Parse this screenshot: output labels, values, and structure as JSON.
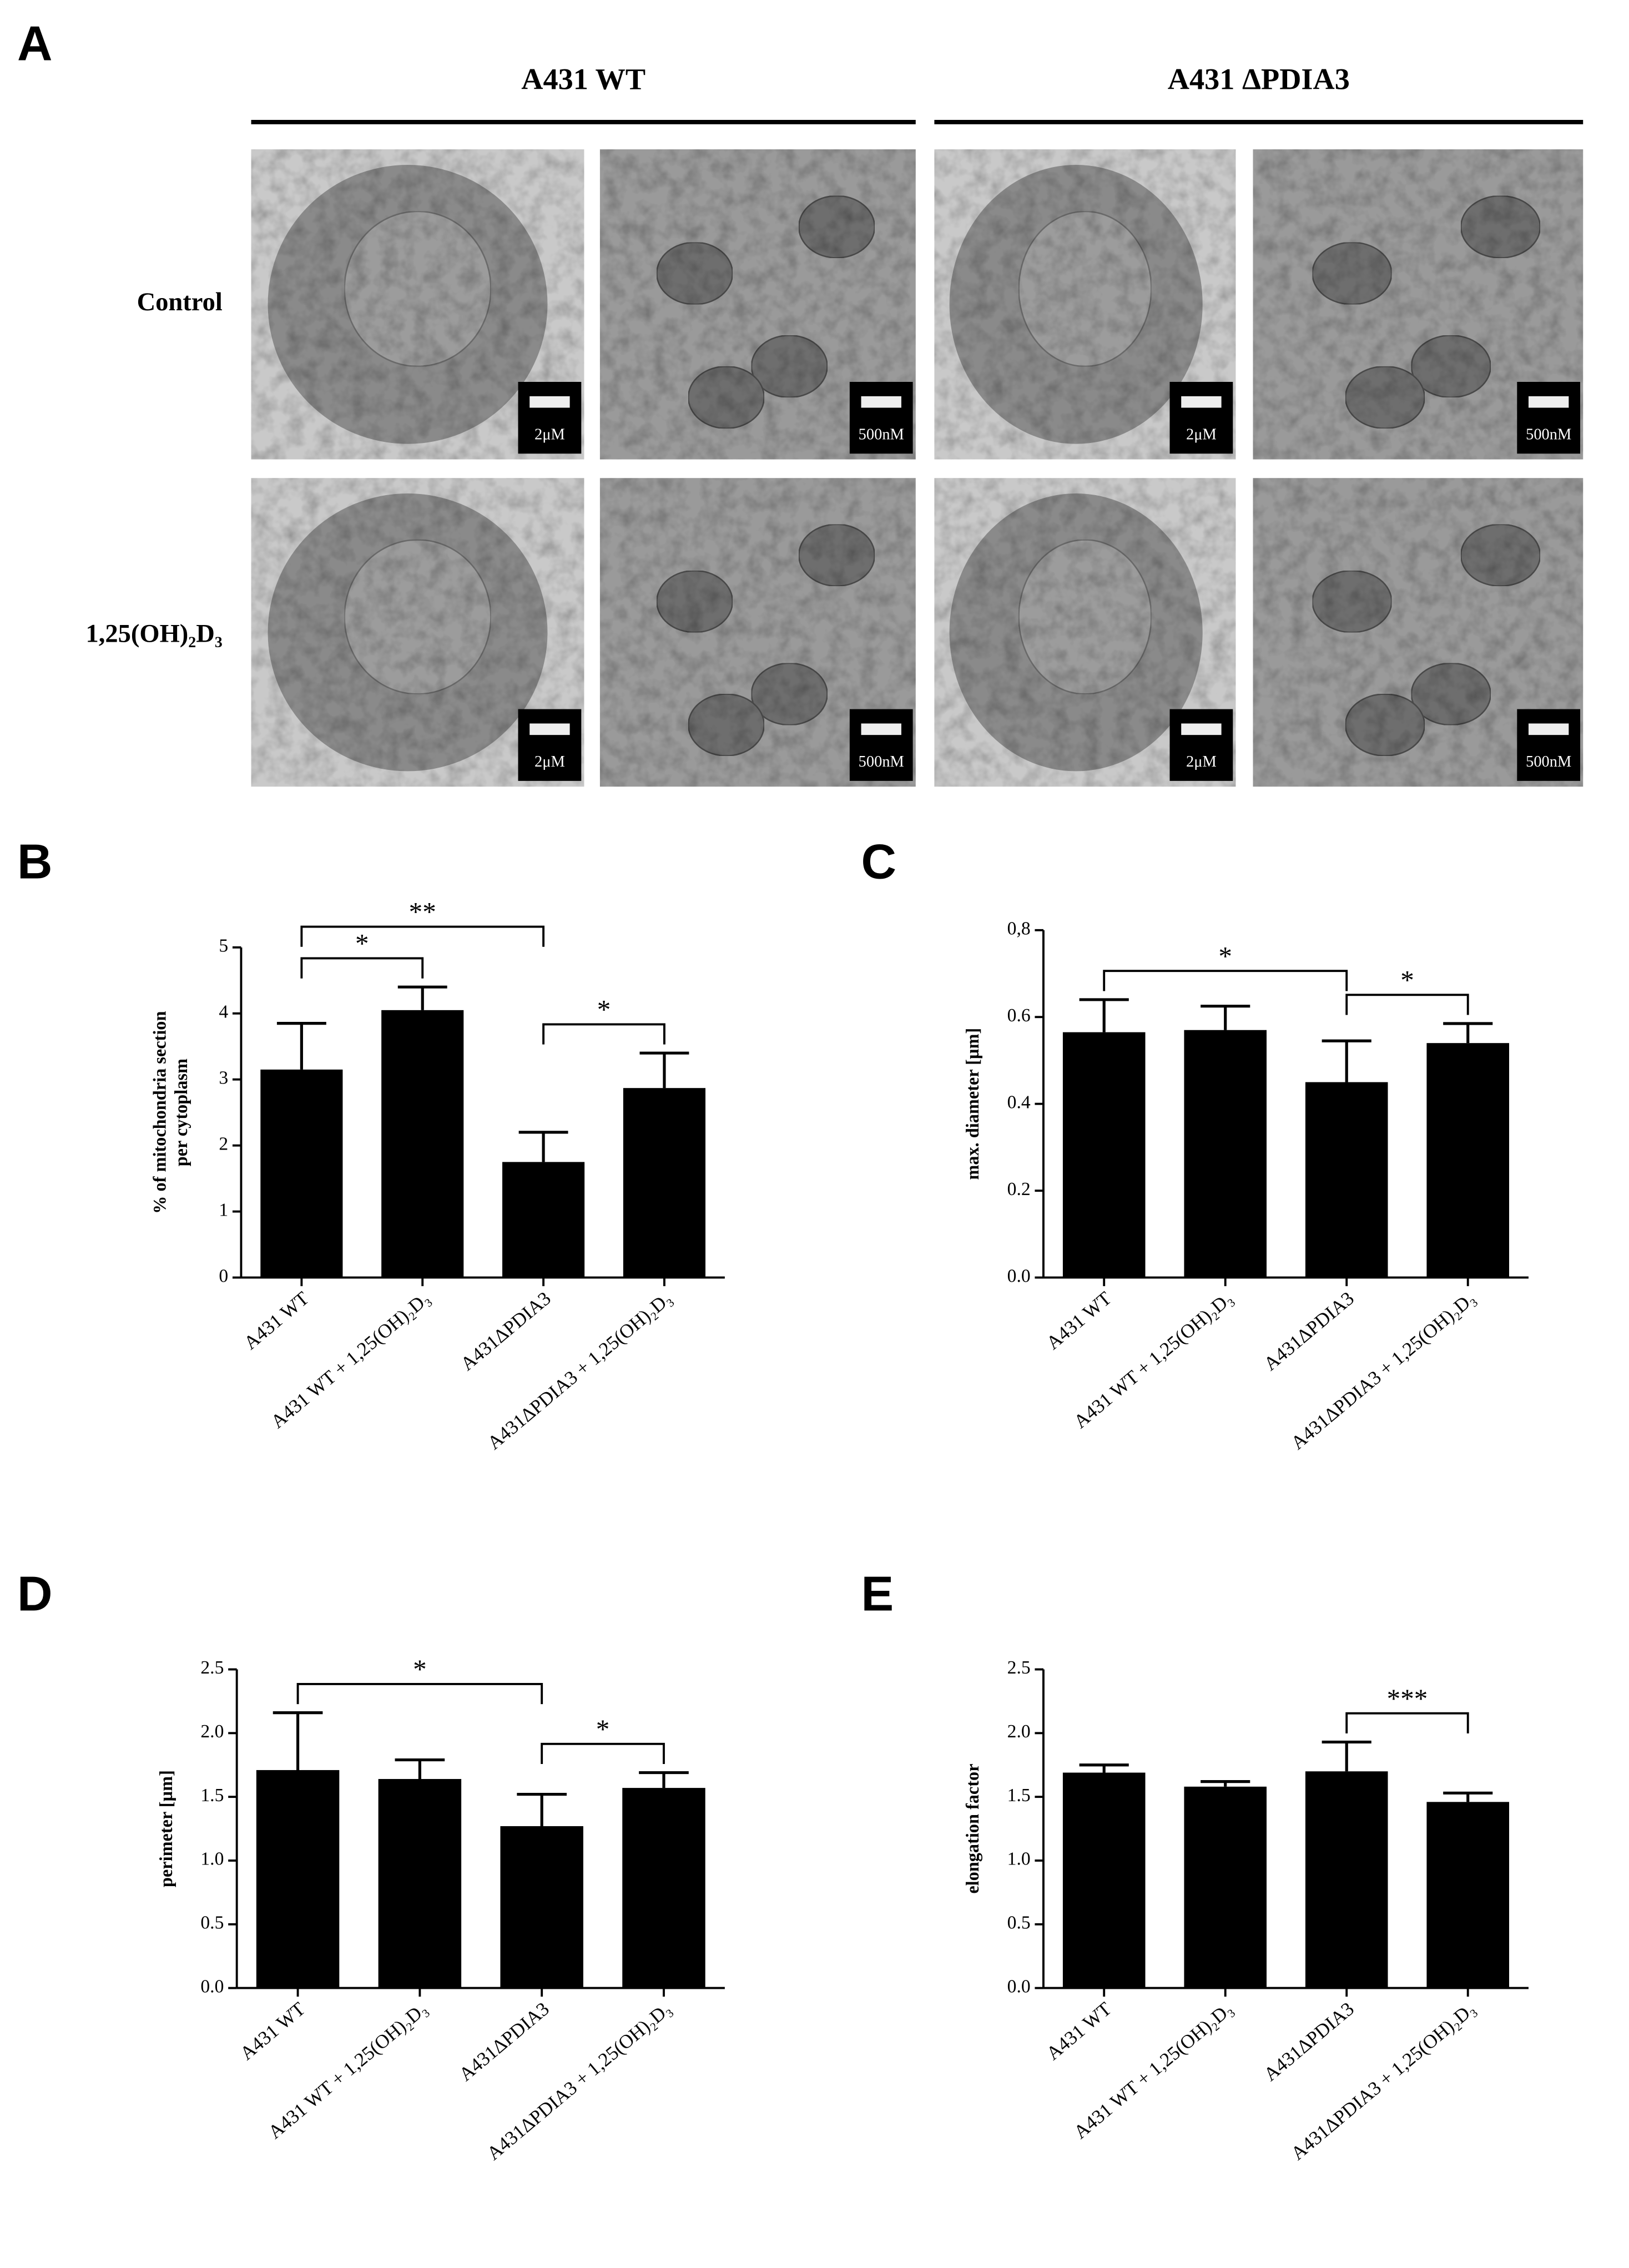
{
  "panel_a": {
    "panel": "A",
    "columns": [
      "A431 WT",
      "A431 ΔPDIA3"
    ],
    "rows": [
      "Control",
      "1,25(OH)₂D₃"
    ],
    "micrographs": [
      [
        "2μM",
        "500nM",
        "2μM",
        "500nM"
      ],
      [
        "2μM",
        "500nM",
        "2μM",
        "500nM"
      ]
    ]
  },
  "chart_data": [
    {
      "type": "bar",
      "panel": "B",
      "ylabel": [
        "% of mitochondria section",
        "per cytoplasm"
      ],
      "categories": [
        "A431 WT",
        "A431 WT + 1,25(OH)₂D₃",
        "A431ΔPDIA3",
        "A431ΔPDIA3 + 1,25(OH)₂D₃"
      ],
      "values": [
        3.15,
        4.05,
        1.75,
        2.87
      ],
      "errors": [
        0.7,
        0.35,
        0.45,
        0.53
      ],
      "color": "#000000",
      "ylim": [
        0,
        5
      ],
      "yticks": [
        0,
        1,
        2,
        3,
        4,
        5
      ],
      "annotations": [
        {
          "between": [
            0,
            1
          ],
          "label": "*"
        },
        {
          "between": [
            0,
            2
          ],
          "label": "**"
        },
        {
          "between": [
            2,
            3
          ],
          "label": "*"
        }
      ]
    },
    {
      "type": "bar",
      "panel": "C",
      "ylabel": [
        "max. diameter [µm]"
      ],
      "categories": [
        "A431 WT",
        "A431 WT + 1,25(OH)₂D₃",
        "A431ΔPDIA3",
        "A431ΔPDIA3 + 1,25(OH)₂D₃"
      ],
      "values": [
        0.565,
        0.57,
        0.45,
        0.54
      ],
      "errors": [
        0.075,
        0.055,
        0.095,
        0.045
      ],
      "color": "#000000",
      "ylim": [
        0,
        0.8
      ],
      "yticks": [
        {
          "value": 0,
          "label": "0.0"
        },
        0.2,
        0.4,
        0.6,
        {
          "value": 0.8,
          "label": "0,8"
        }
      ],
      "annotations": [
        {
          "between": [
            0,
            2
          ],
          "label": "*"
        },
        {
          "between": [
            2,
            3
          ],
          "label": "*"
        }
      ]
    },
    {
      "type": "bar",
      "panel": "D",
      "ylabel": [
        "perimeter [µm]"
      ],
      "categories": [
        "A431 WT",
        "A431 WT + 1,25(OH)₂D₃",
        "A431ΔPDIA3",
        "A431ΔPDIA3 + 1,25(OH)₂D₃"
      ],
      "values": [
        1.71,
        1.64,
        1.27,
        1.57
      ],
      "errors": [
        0.45,
        0.15,
        0.25,
        0.12
      ],
      "color": "#000000",
      "ylim": [
        0,
        2.5
      ],
      "yticks": [
        {
          "value": 0,
          "label": "0.0"
        },
        0.5,
        {
          "value": 1,
          "label": "1.0"
        },
        1.5,
        {
          "value": 2,
          "label": "2.0"
        },
        2.5
      ],
      "annotations": [
        {
          "between": [
            0,
            2
          ],
          "label": "*"
        },
        {
          "between": [
            2,
            3
          ],
          "label": "*"
        }
      ]
    },
    {
      "type": "bar",
      "panel": "E",
      "ylabel": [
        "elongation factor"
      ],
      "categories": [
        "A431 WT",
        "A431 WT + 1,25(OH)₂D₃",
        "A431ΔPDIA3",
        "A431ΔPDIA3 + 1,25(OH)₂D₃"
      ],
      "values": [
        1.69,
        1.58,
        1.7,
        1.46
      ],
      "errors": [
        0.06,
        0.04,
        0.23,
        0.07
      ],
      "color": "#000000",
      "ylim": [
        0,
        2.5
      ],
      "yticks": [
        {
          "value": 0,
          "label": "0.0"
        },
        0.5,
        {
          "value": 1,
          "label": "1.0"
        },
        1.5,
        {
          "value": 2,
          "label": "2.0"
        },
        2.5
      ],
      "annotations": [
        {
          "between": [
            2,
            3
          ],
          "label": "***"
        }
      ]
    }
  ]
}
